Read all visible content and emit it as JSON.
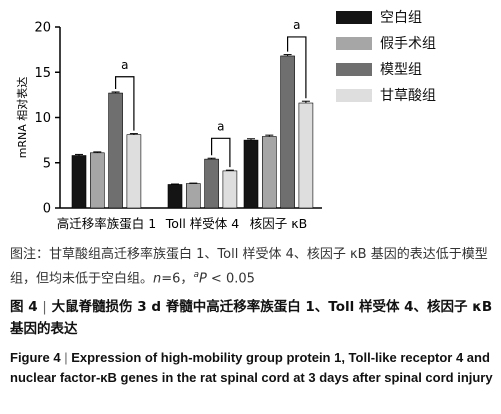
{
  "chart_data": {
    "type": "bar",
    "categories": [
      "高迁移率族蛋白 1",
      "Toll 样受体 4",
      "核因子 κB"
    ],
    "series": [
      {
        "name": "空白组",
        "color": "#141414",
        "values": [
          5.8,
          2.6,
          7.5
        ],
        "errors": [
          0.12,
          0.05,
          0.15
        ]
      },
      {
        "name": "假手术组",
        "color": "#a6a6a6",
        "values": [
          6.1,
          2.7,
          7.9
        ],
        "errors": [
          0.1,
          0.05,
          0.15
        ]
      },
      {
        "name": "模型组",
        "color": "#6f6f6f",
        "values": [
          12.7,
          5.4,
          16.8
        ],
        "errors": [
          0.12,
          0.1,
          0.15
        ]
      },
      {
        "name": "甘草酸组",
        "color": "#dedede",
        "values": [
          8.1,
          4.1,
          11.6
        ],
        "errors": [
          0.12,
          0.08,
          0.2
        ]
      }
    ],
    "ylabel": "mRNA 相对表达",
    "ylim": [
      0,
      20
    ],
    "yticks": [
      0,
      5,
      10,
      15,
      20
    ],
    "significance": [
      {
        "group": 0,
        "from": 2,
        "to": 3,
        "label": "a",
        "level": 14.5
      },
      {
        "group": 1,
        "from": 2,
        "to": 3,
        "label": "a",
        "level": 7.7
      },
      {
        "group": 2,
        "from": 2,
        "to": 3,
        "label": "a",
        "level": 18.9
      }
    ]
  },
  "note": {
    "prefix": "图注：甘草酸组高迁移率族蛋白 1、Toll 样受体 4、核因子 κB 基因的表达低于模型组，但均未低于空白组。",
    "n_label": "n",
    "n_value": "=6，",
    "p_sup": "a",
    "p_label": "P",
    "p_value": " < 0.05"
  },
  "caption_cn": {
    "label": "图 4",
    "sep": "|",
    "text": "大鼠脊髓损伤 3 d 脊髓中高迁移率族蛋白 1、Toll 样受体 4、核因子 κB 基因的表达"
  },
  "caption_en": {
    "label": "Figure 4",
    "sep": "|",
    "text": "Expression of high-mobility group protein 1, Toll-like receptor 4 and nuclear factor-κB genes in the rat spinal cord at 3 days after spinal cord injury"
  }
}
